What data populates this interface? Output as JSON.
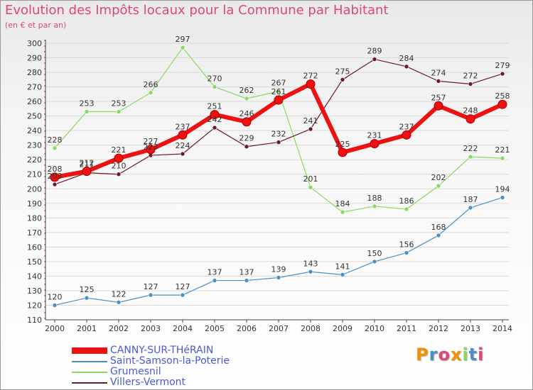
{
  "title": "Evolution des Impôts locaux pour la Commune par Habitant",
  "subtitle": "(en € et par an)",
  "colors": {
    "title": "#e0457b",
    "canny": "#ee1111",
    "saint_samson": "#4a90c8",
    "grumesnil": "#8ad860",
    "villers": "#6b1a26",
    "axis_label": "#333333",
    "grid": "#d9d9d9"
  },
  "logo": {
    "letters": [
      "P",
      "r",
      "o",
      "x",
      "i",
      "t",
      "i"
    ],
    "colors": [
      "#f39200",
      "#4a90c8",
      "#e0457b",
      "#f39200",
      "#8ad860",
      "#4a90c8",
      "#e0457b"
    ]
  },
  "chart_data": {
    "type": "line",
    "title": "Evolution des Impôts locaux pour la Commune par Habitant",
    "subtitle": "(en € et par an)",
    "x": [
      "2000",
      "2001",
      "2002",
      "2003",
      "2004",
      "2005",
      "2006",
      "2007",
      "2008",
      "2009",
      "2010",
      "2011",
      "2012",
      "2013",
      "2014"
    ],
    "ylim": [
      110,
      300
    ],
    "yticks": [
      110,
      120,
      130,
      140,
      150,
      160,
      170,
      180,
      190,
      200,
      210,
      220,
      230,
      240,
      250,
      260,
      270,
      280,
      290,
      300
    ],
    "grid": true,
    "legend_position": "bottom-left",
    "series": [
      {
        "name": "CANNY-SUR-THéRAIN",
        "key": "canny",
        "values": [
          208,
          212,
          221,
          227,
          237,
          251,
          246,
          261,
          272,
          225,
          231,
          237,
          257,
          248,
          258
        ]
      },
      {
        "name": "Saint-Samson-la-Poterie",
        "key": "saint_samson",
        "values": [
          120,
          125,
          122,
          127,
          127,
          137,
          137,
          139,
          143,
          141,
          150,
          156,
          168,
          187,
          194
        ]
      },
      {
        "name": "Grumesnil",
        "key": "grumesnil",
        "values": [
          228,
          253,
          253,
          266,
          297,
          270,
          262,
          267,
          201,
          184,
          188,
          186,
          202,
          222,
          221
        ]
      },
      {
        "name": "Villers-Vermont",
        "key": "villers",
        "values": [
          203,
          211,
          210,
          223,
          224,
          242,
          229,
          232,
          241,
          275,
          289,
          284,
          274,
          272,
          279
        ]
      }
    ]
  }
}
